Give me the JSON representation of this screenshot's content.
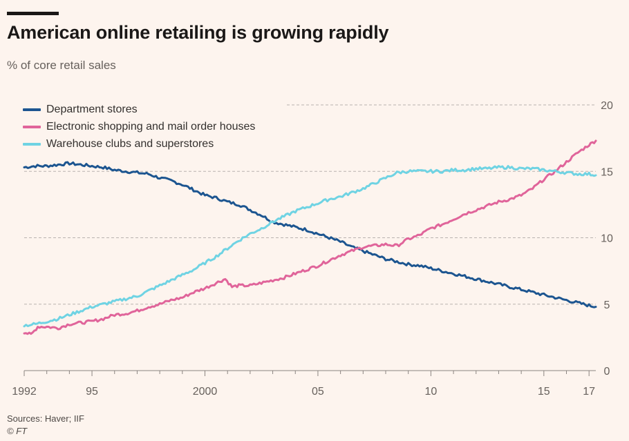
{
  "header": {
    "title": "American online retailing is growing rapidly",
    "subtitle": "% of core retail sales"
  },
  "footer": {
    "sources": "Sources: Haver; IIF",
    "copyright": "© FT"
  },
  "colors": {
    "background": "#fdf4ee",
    "department": "#1c5590",
    "electronic": "#e0649a",
    "warehouse": "#6fd3e3",
    "grid": "#b8b2ae",
    "tick_text": "#66605c"
  },
  "chart_data": {
    "type": "line",
    "y_ticks": [
      0,
      5,
      10,
      15,
      20
    ],
    "y_tick_labels": [
      "0",
      "5",
      "10",
      "15",
      "20"
    ],
    "ylim": [
      0,
      20
    ],
    "xlim": [
      1992,
      2017.3
    ],
    "x_ticks": [
      1992,
      1995,
      2000,
      2005,
      2010,
      2015,
      2017
    ],
    "x_tick_labels": [
      "1992",
      "95",
      "2000",
      "05",
      "10",
      "15",
      "17"
    ],
    "grid": "horizontal dashed",
    "legend_placement": "top-left",
    "series": [
      {
        "name": "Department stores",
        "color": "#1c5590",
        "x": [
          1992,
          1992.5,
          1993,
          1993.5,
          1994,
          1994.5,
          1995,
          1995.5,
          1996,
          1996.5,
          1997,
          1997.5,
          1998,
          1998.5,
          1999,
          1999.5,
          2000,
          2000.5,
          2001,
          2001.5,
          2002,
          2002.5,
          2003,
          2003.5,
          2004,
          2004.5,
          2005,
          2005.5,
          2006,
          2006.5,
          2007,
          2007.5,
          2008,
          2008.5,
          2009,
          2009.5,
          2010,
          2010.5,
          2011,
          2011.5,
          2012,
          2012.5,
          2013,
          2013.5,
          2014,
          2014.5,
          2015,
          2015.5,
          2016,
          2016.5,
          2017,
          2017.3
        ],
        "values": [
          15.3,
          15.4,
          15.4,
          15.5,
          15.6,
          15.5,
          15.4,
          15.3,
          15.1,
          15.0,
          14.9,
          14.8,
          14.5,
          14.3,
          14.0,
          13.6,
          13.2,
          13.0,
          12.7,
          12.5,
          12.1,
          11.7,
          11.2,
          11.0,
          10.8,
          10.6,
          10.3,
          10.0,
          9.7,
          9.3,
          9.0,
          8.7,
          8.4,
          8.2,
          8.0,
          7.9,
          7.7,
          7.5,
          7.3,
          7.1,
          6.9,
          6.7,
          6.5,
          6.3,
          6.1,
          5.9,
          5.7,
          5.5,
          5.3,
          5.1,
          4.9,
          4.8
        ]
      },
      {
        "name": "Electronic shopping and mail order houses",
        "color": "#e0649a",
        "x": [
          1992,
          1992.3,
          1992.6,
          1993,
          1993.5,
          1994,
          1994.5,
          1995,
          1995.5,
          1996,
          1996.5,
          1997,
          1997.5,
          1998,
          1998.5,
          1999,
          1999.5,
          2000,
          2000.5,
          2000.9,
          2001.2,
          2001.5,
          2002,
          2002.5,
          2003,
          2003.5,
          2004,
          2004.5,
          2005,
          2005.5,
          2006,
          2006.5,
          2007,
          2007.5,
          2008,
          2008.5,
          2009,
          2009.5,
          2010,
          2010.5,
          2011,
          2011.5,
          2012,
          2012.5,
          2013,
          2013.5,
          2014,
          2014.5,
          2015,
          2015.5,
          2016,
          2016.5,
          2017,
          2017.3
        ],
        "values": [
          2.9,
          2.7,
          3.3,
          3.3,
          3.2,
          3.5,
          3.6,
          3.7,
          3.9,
          4.2,
          4.3,
          4.5,
          4.8,
          5.0,
          5.3,
          5.5,
          5.9,
          6.2,
          6.6,
          6.9,
          6.3,
          6.4,
          6.4,
          6.6,
          6.8,
          7.0,
          7.3,
          7.6,
          7.9,
          8.3,
          8.7,
          9.0,
          9.3,
          9.4,
          9.5,
          9.4,
          9.9,
          10.2,
          10.7,
          11.0,
          11.4,
          11.8,
          12.1,
          12.4,
          12.7,
          12.9,
          13.2,
          13.7,
          14.4,
          15.0,
          15.7,
          16.4,
          17.0,
          17.3
        ]
      },
      {
        "name": "Warehouse clubs and superstores",
        "color": "#6fd3e3",
        "x": [
          1992,
          1992.5,
          1993,
          1993.5,
          1994,
          1994.5,
          1995,
          1995.5,
          1996,
          1996.5,
          1997,
          1997.5,
          1998,
          1998.5,
          1999,
          1999.5,
          2000,
          2000.5,
          2001,
          2001.5,
          2002,
          2002.5,
          2003,
          2003.5,
          2004,
          2004.5,
          2005,
          2005.5,
          2006,
          2006.5,
          2007,
          2007.5,
          2008,
          2008.5,
          2009,
          2009.5,
          2010,
          2010.5,
          2011,
          2011.5,
          2012,
          2012.5,
          2013,
          2013.5,
          2014,
          2014.5,
          2015,
          2015.5,
          2016,
          2016.5,
          2017,
          2017.3
        ],
        "values": [
          3.4,
          3.5,
          3.7,
          3.9,
          4.2,
          4.5,
          4.8,
          5.0,
          5.2,
          5.4,
          5.6,
          6.0,
          6.4,
          6.8,
          7.2,
          7.6,
          8.1,
          8.6,
          9.2,
          9.8,
          10.3,
          10.7,
          11.2,
          11.6,
          12.0,
          12.3,
          12.6,
          12.9,
          13.1,
          13.4,
          13.7,
          14.1,
          14.5,
          14.9,
          15.0,
          15.0,
          15.0,
          15.0,
          15.1,
          15.1,
          15.2,
          15.2,
          15.3,
          15.3,
          15.2,
          15.2,
          15.1,
          15.0,
          14.9,
          14.8,
          14.8,
          14.7
        ]
      }
    ]
  }
}
